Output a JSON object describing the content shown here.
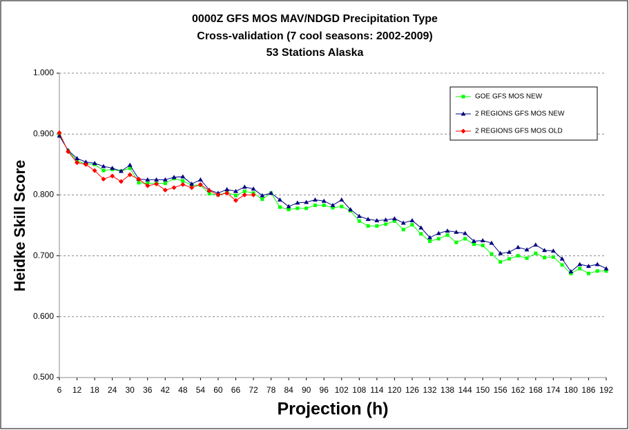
{
  "chart_data": {
    "type": "line",
    "title": [
      "0000Z GFS MOS MAV/NDGD Precipitation Type",
      "Cross-validation (7 cool seasons: 2002-2009)",
      "53 Stations Alaska"
    ],
    "xlabel": "Projection (h)",
    "ylabel": "Heidke Skill Score",
    "x": [
      6,
      9,
      12,
      15,
      18,
      21,
      24,
      27,
      30,
      33,
      36,
      39,
      42,
      45,
      48,
      51,
      54,
      57,
      60,
      63,
      66,
      69,
      72,
      75,
      78,
      81,
      84,
      87,
      90,
      93,
      96,
      99,
      102,
      105,
      108,
      111,
      114,
      117,
      120,
      123,
      126,
      129,
      132,
      135,
      138,
      141,
      144,
      147,
      150,
      153,
      156,
      159,
      162,
      165,
      168,
      171,
      174,
      177,
      180,
      183,
      186,
      189,
      192
    ],
    "series": [
      {
        "name": "GOE GFS MOS NEW",
        "color": "#00ff00",
        "marker": "square",
        "values": [
          0.899,
          0.872,
          0.856,
          0.851,
          0.85,
          0.84,
          0.842,
          0.839,
          0.844,
          0.82,
          0.819,
          0.819,
          0.819,
          0.827,
          0.823,
          0.816,
          0.816,
          0.802,
          0.8,
          0.804,
          0.799,
          0.806,
          0.803,
          0.793,
          0.803,
          0.78,
          0.776,
          0.778,
          0.778,
          0.783,
          0.783,
          0.779,
          0.781,
          0.774,
          0.757,
          0.749,
          0.749,
          0.752,
          0.757,
          0.743,
          0.751,
          0.736,
          0.724,
          0.728,
          0.734,
          0.722,
          0.728,
          0.719,
          0.717,
          0.703,
          0.69,
          0.695,
          0.7,
          0.696,
          0.704,
          0.697,
          0.698,
          0.685,
          0.671,
          0.679,
          0.671,
          0.675,
          0.675
        ]
      },
      {
        "name": "2 REGIONS GFS MOS NEW",
        "color": "#000080",
        "marker": "triangle",
        "values": [
          0.897,
          0.873,
          0.86,
          0.854,
          0.852,
          0.847,
          0.844,
          0.839,
          0.849,
          0.826,
          0.825,
          0.825,
          0.825,
          0.829,
          0.83,
          0.818,
          0.825,
          0.808,
          0.803,
          0.809,
          0.806,
          0.813,
          0.81,
          0.799,
          0.803,
          0.792,
          0.781,
          0.787,
          0.788,
          0.792,
          0.79,
          0.783,
          0.792,
          0.776,
          0.765,
          0.76,
          0.758,
          0.759,
          0.761,
          0.754,
          0.758,
          0.746,
          0.73,
          0.737,
          0.741,
          0.739,
          0.737,
          0.724,
          0.725,
          0.721,
          0.704,
          0.706,
          0.714,
          0.71,
          0.718,
          0.709,
          0.708,
          0.695,
          0.674,
          0.686,
          0.683,
          0.686,
          0.679
        ]
      },
      {
        "name": "2 REGIONS GFS MOS OLD",
        "color": "#ff0000",
        "marker": "diamond",
        "values": [
          0.902,
          0.871,
          0.853,
          0.85,
          0.84,
          0.826,
          0.831,
          0.822,
          0.833,
          0.826,
          0.815,
          0.818,
          0.808,
          0.812,
          0.817,
          0.812,
          0.817,
          0.807,
          0.8,
          0.803,
          0.791,
          0.8,
          0.8,
          null,
          null,
          null,
          null,
          null,
          null,
          null,
          null,
          null,
          null,
          null,
          null,
          null,
          null,
          null,
          null,
          null,
          null,
          null,
          null,
          null,
          null,
          null,
          null,
          null,
          null,
          null,
          null,
          null,
          null,
          null,
          null,
          null,
          null,
          null,
          null,
          null,
          null,
          null,
          null
        ]
      }
    ],
    "xlim": [
      6,
      192
    ],
    "xticks": [
      6,
      12,
      18,
      24,
      30,
      36,
      42,
      48,
      54,
      60,
      66,
      72,
      78,
      84,
      90,
      96,
      102,
      108,
      114,
      120,
      126,
      132,
      138,
      144,
      150,
      156,
      162,
      168,
      174,
      180,
      186,
      192
    ],
    "ylim": [
      0.5,
      1.0
    ],
    "yticks": [
      {
        "value": 0.5,
        "label": "0.500"
      },
      {
        "value": 0.6,
        "label": "0.600"
      },
      {
        "value": 0.7,
        "label": "0.700"
      },
      {
        "value": 0.8,
        "label": "0.800"
      },
      {
        "value": 0.9,
        "label": "0.900"
      },
      {
        "value": 1.0,
        "label": "1.000"
      }
    ],
    "grid": true,
    "legend": "upper right"
  }
}
